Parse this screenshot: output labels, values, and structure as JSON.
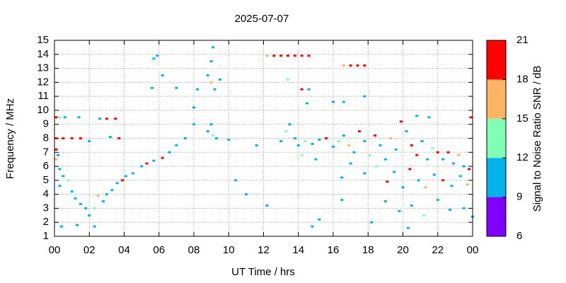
{
  "chart_data": {
    "type": "scatter",
    "title": "2025-07-07",
    "x_label": "UT Time / hrs",
    "y_label": "Frequency / MHz",
    "xlim": [
      0,
      24
    ],
    "xticks": [
      {
        "value": 0,
        "label": "00"
      },
      {
        "value": 2,
        "label": "02"
      },
      {
        "value": 4,
        "label": "04"
      },
      {
        "value": 6,
        "label": "06"
      },
      {
        "value": 8,
        "label": "08"
      },
      10,
      12,
      14,
      16,
      18,
      20,
      22,
      {
        "value": 24,
        "label": "00"
      }
    ],
    "ylim": [
      1,
      15
    ],
    "yticks": [
      1,
      2,
      3,
      4,
      5,
      6,
      7,
      8,
      9,
      10,
      11,
      12,
      13,
      14,
      15
    ],
    "grid": true,
    "colorbar": {
      "label": "Signal to Noise Ratio SNR / dB",
      "lim": [
        6,
        21
      ],
      "ticks": [
        6,
        9,
        12,
        15,
        18,
        21
      ],
      "colors": [
        "#8000ff",
        "#00b4eb",
        "#80ffb4",
        "#ffb464",
        "#ff0000"
      ]
    },
    "x": [
      0.1,
      0.3,
      0.6,
      1.4,
      0.1,
      0.5,
      1.0,
      1.5,
      0.1,
      0.2,
      0.1,
      0.3,
      0.5,
      0.8,
      0.3,
      1.0,
      1.2,
      1.5,
      1.8,
      2.0,
      2.3,
      2.5,
      2.8,
      3.0,
      3.3,
      3.6,
      3.9,
      4.1,
      4.5,
      5.0,
      5.3,
      5.7,
      6.2,
      6.6,
      7.0,
      7.5,
      8.0,
      8.0,
      8.2,
      8.8,
      9.0,
      9.1,
      9.0,
      9.2,
      9.0,
      8.8,
      9.1,
      9.3,
      9.5,
      7.0,
      6.2,
      5.7,
      5.9,
      5.6,
      2.6,
      3.0,
      3.5,
      3.7,
      3.2,
      2.0,
      10.0,
      11.6,
      10.4,
      11.0,
      12.2,
      12.2,
      12.6,
      13.0,
      13.4,
      13.8,
      14.2,
      14.6,
      13.4,
      14.2,
      14.6,
      14.5,
      16.0,
      16.6,
      16.6,
      17.0,
      17.4,
      17.8,
      17.8,
      13.0,
      13.3,
      13.5,
      13.8,
      14.0,
      14.4,
      14.8,
      15.2,
      15.6,
      16.0,
      16.3,
      16.6,
      16.9,
      17.2,
      17.5,
      17.8,
      18.1,
      18.4,
      18.7,
      19.0,
      19.3,
      19.6,
      19.9,
      20.2,
      20.5,
      20.8,
      21.1,
      21.4,
      21.7,
      22.0,
      22.3,
      22.6,
      22.9,
      23.2,
      23.5,
      23.8,
      23.9,
      21.5,
      20.8,
      16.5,
      17.8,
      19.1,
      19.5,
      20.0,
      20.4,
      20.9,
      21.3,
      21.8,
      22.3,
      22.8,
      23.3,
      23.7,
      19.0,
      19.8,
      20.5,
      21.2,
      22.0,
      22.7,
      23.5,
      24.0,
      20.3,
      18.2,
      15.2,
      14.8,
      16.5,
      1.3,
      0.4,
      2.3,
      14.2,
      15.0,
      17.0,
      18.5
    ],
    "y": [
      9.5,
      9.5,
      9.5,
      9.5,
      8.0,
      8.0,
      8.0,
      8.0,
      7.2,
      6.8,
      6.5,
      5.8,
      5.3,
      5.0,
      4.6,
      4.2,
      3.7,
      3.3,
      3.0,
      2.5,
      3.0,
      3.9,
      3.5,
      4.0,
      4.3,
      4.8,
      5.0,
      5.3,
      5.5,
      6.0,
      6.2,
      6.4,
      6.6,
      7.0,
      7.5,
      8.0,
      9.0,
      10.2,
      11.5,
      12.5,
      13.5,
      14.5,
      12.0,
      11.5,
      9.0,
      8.5,
      8.2,
      8.0,
      12.2,
      11.6,
      12.5,
      13.7,
      13.9,
      11.6,
      9.4,
      9.4,
      9.4,
      8.0,
      8.1,
      7.8,
      7.9,
      7.5,
      5.0,
      4.0,
      3.2,
      13.9,
      13.9,
      13.9,
      13.9,
      13.9,
      13.9,
      13.9,
      12.2,
      11.5,
      11.5,
      10.5,
      10.6,
      10.6,
      13.2,
      13.2,
      13.2,
      13.2,
      11.0,
      7.8,
      8.5,
      9.0,
      8.0,
      7.5,
      7.8,
      7.6,
      7.9,
      8.0,
      7.4,
      7.8,
      8.2,
      7.5,
      7.0,
      8.5,
      7.8,
      6.8,
      8.2,
      7.5,
      6.5,
      8.0,
      7.2,
      9.2,
      8.5,
      7.5,
      6.8,
      7.8,
      6.5,
      7.3,
      7.0,
      6.5,
      7.0,
      6.2,
      6.8,
      6.0,
      5.8,
      9.5,
      9.5,
      9.6,
      5.2,
      5.5,
      4.9,
      5.6,
      4.5,
      5.8,
      5.0,
      4.5,
      5.4,
      5.0,
      4.6,
      5.3,
      4.7,
      3.5,
      2.8,
      3.2,
      2.5,
      3.6,
      2.9,
      3.0,
      2.4,
      1.6,
      2.0,
      2.2,
      1.7,
      3.6,
      1.8,
      1.7,
      1.7,
      6.8,
      6.5,
      6.2,
      6.0
    ],
    "snr": [
      19,
      13,
      10,
      10,
      19,
      19,
      19,
      19,
      19,
      10,
      16,
      10,
      10,
      13,
      10,
      10,
      10,
      10,
      10,
      10,
      13,
      16,
      10,
      10,
      10,
      10,
      19,
      10,
      10,
      10,
      19,
      10,
      19,
      10,
      10,
      10,
      10,
      10,
      10,
      10,
      10,
      10,
      16,
      10,
      10,
      10,
      13,
      10,
      10,
      10,
      10,
      10,
      10,
      10,
      10,
      19,
      19,
      19,
      10,
      10,
      10,
      10,
      10,
      10,
      10,
      16,
      19,
      19,
      19,
      19,
      19,
      19,
      13,
      19,
      10,
      10,
      10,
      10,
      16,
      19,
      19,
      19,
      10,
      10,
      13,
      10,
      10,
      10,
      13,
      10,
      10,
      19,
      10,
      13,
      10,
      16,
      10,
      19,
      10,
      13,
      19,
      10,
      10,
      16,
      10,
      19,
      10,
      19,
      19,
      10,
      10,
      13,
      19,
      10,
      19,
      10,
      16,
      10,
      19,
      19,
      10,
      10,
      10,
      10,
      19,
      10,
      10,
      19,
      10,
      16,
      10,
      19,
      10,
      10,
      16,
      10,
      10,
      10,
      13,
      10,
      10,
      10,
      10,
      10,
      10,
      10,
      10,
      10,
      10,
      10,
      10,
      13,
      10,
      10,
      13
    ]
  }
}
